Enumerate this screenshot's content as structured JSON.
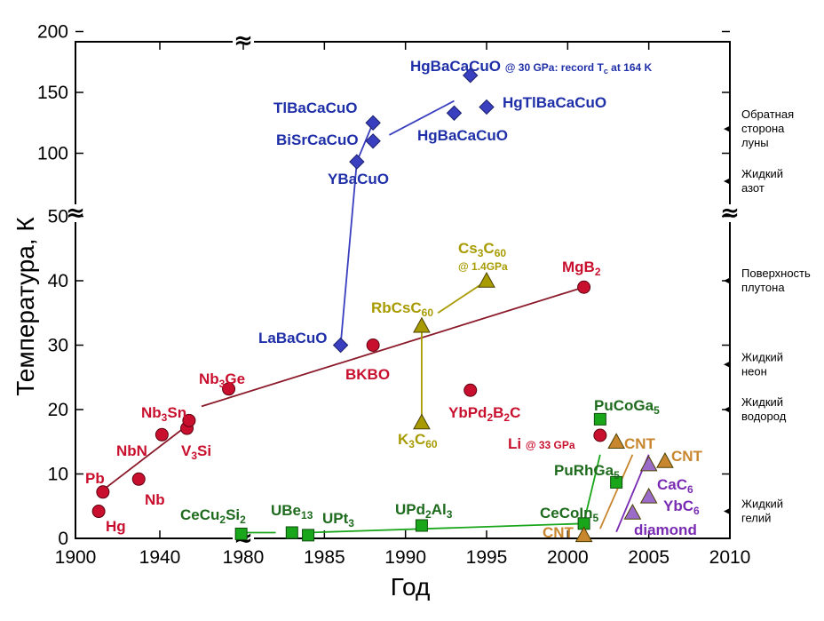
{
  "chart_data": {
    "type": "scatter",
    "xlabel": "Год",
    "ylabel": "Температура, К",
    "x_ticks": [
      "1900",
      "1940",
      "1980",
      "1985",
      "1990",
      "1995",
      "2000",
      "2005",
      "2010"
    ],
    "y_ticks_lower": [
      "0",
      "10",
      "20",
      "30",
      "40",
      "50"
    ],
    "y_ticks_upper": [
      "100",
      "150",
      "200"
    ],
    "series": [
      {
        "group": "conventional",
        "color": "#c8102e",
        "marker": "circle",
        "points": [
          {
            "label": "Hg",
            "x": 1911,
            "y": 4.2
          },
          {
            "label": "Pb",
            "x": 1913,
            "y": 7.2
          },
          {
            "label": "Nb",
            "x": 1930,
            "y": 9.2
          },
          {
            "label": "NbN",
            "x": 1941,
            "y": 16.1
          },
          {
            "label": "V3Si",
            "x": 1953,
            "y": 17.1
          },
          {
            "label": "Nb3Sn",
            "x": 1954,
            "y": 18.3
          },
          {
            "label": "Nb3Ge",
            "x": 1973,
            "y": 23.2
          },
          {
            "label": "BKBO",
            "x": 1988,
            "y": 30
          },
          {
            "label": "YbPd2B2C",
            "x": 1994,
            "y": 23
          },
          {
            "label": "MgB2",
            "x": 2001,
            "y": 39
          },
          {
            "label": "Li @ 33 GPa",
            "x": 2002,
            "y": 16
          }
        ]
      },
      {
        "group": "cuprates",
        "color": "#3a3fbf",
        "marker": "diamond",
        "points": [
          {
            "label": "LaBaCuO",
            "x": 1986,
            "y": 30
          },
          {
            "label": "YBaCuO",
            "x": 1987,
            "y": 93
          },
          {
            "label": "BiSrCaCuO",
            "x": 1988,
            "y": 110
          },
          {
            "label": "TlBaCaCuO",
            "x": 1988,
            "y": 125
          },
          {
            "label": "HgBaCaCuO",
            "x": 1993,
            "y": 133
          },
          {
            "label": "HgTlBaCaCuO",
            "x": 1995,
            "y": 138
          },
          {
            "label": "HgBaCaCuO @ 30 GPa: record Tc at 164 K",
            "x": 1994,
            "y": 164
          }
        ]
      },
      {
        "group": "fullerenes",
        "color": "#a89b00",
        "marker": "triangle",
        "points": [
          {
            "label": "K3C60",
            "x": 1991,
            "y": 18
          },
          {
            "label": "RbCsC60",
            "x": 1991,
            "y": 33
          },
          {
            "label": "Cs3C60 @ 1.4GPa",
            "x": 1995,
            "y": 40
          }
        ]
      },
      {
        "group": "heavy-fermion",
        "color": "#1aa61a",
        "marker": "square",
        "points": [
          {
            "label": "CeCu2Si2",
            "x": 1979,
            "y": 0.7
          },
          {
            "label": "UBe13",
            "x": 1983,
            "y": 0.9
          },
          {
            "label": "UPt3",
            "x": 1984,
            "y": 0.5
          },
          {
            "label": "UPd2Al3",
            "x": 1991,
            "y": 2
          },
          {
            "label": "CeCoIn5",
            "x": 2001,
            "y": 2.3
          },
          {
            "label": "PuRhGa5",
            "x": 2003,
            "y": 8.7
          },
          {
            "label": "PuCoGa5",
            "x": 2002,
            "y": 18.5
          }
        ]
      },
      {
        "group": "carbon",
        "color": "#c8862e",
        "marker": "triangle",
        "points": [
          {
            "label": "CNT",
            "x": 2001,
            "y": 0.5
          },
          {
            "label": "CNT",
            "x": 2003,
            "y": 15
          },
          {
            "label": "CNT",
            "x": 2006,
            "y": 12
          }
        ]
      },
      {
        "group": "graphite-diamond",
        "color": "#9b6bc9",
        "marker": "triangle",
        "points": [
          {
            "label": "CaC6",
            "x": 2005,
            "y": 11.5
          },
          {
            "label": "YbC6",
            "x": 2005,
            "y": 6.5
          },
          {
            "label": "diamond",
            "x": 2004,
            "y": 4
          }
        ]
      }
    ],
    "reference_lines": [
      {
        "label": "Обратная сторона луны",
        "y": 120
      },
      {
        "label": "Жидкий азот",
        "y": 77
      },
      {
        "label": "Поверхность плутона",
        "y": 40
      },
      {
        "label": "Жидкий неон",
        "y": 27
      },
      {
        "label": "Жидкий водород",
        "y": 20
      },
      {
        "label": "Жидкий гелий",
        "y": 4.2
      }
    ]
  },
  "ui": {
    "axis_break_symbol": "≈",
    "sub_60": "60",
    "sub_3": "3",
    "sub_2": "2",
    "sub_5": "5",
    "sub_6": "6",
    "sub_13": "13",
    "sub_c": "c",
    "hg_record_prefix": "@ 30 GPa: record T",
    "hg_record_suffix": " at 164 K",
    "li_pressure": "@ 33 GPa",
    "cs_pressure": "@ 1.4GPa"
  },
  "colors": {
    "conventional": "#c8102e",
    "cuprate_text": "#1f2fa8",
    "fullerene_text": "#a89b00",
    "heavy_fermion_text": "#1e6b1e",
    "cnt_text": "#c8862e",
    "graphite_text": "#7a2bb3"
  }
}
